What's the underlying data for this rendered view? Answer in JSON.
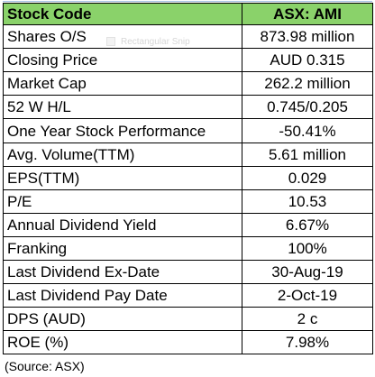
{
  "table": {
    "header": {
      "label": "Stock Code",
      "value": "ASX: AMI",
      "color": "#8ad26a"
    },
    "rows": [
      {
        "label": "Shares O/S",
        "value": "873.98 million"
      },
      {
        "label": "Closing Price",
        "value": "AUD 0.315"
      },
      {
        "label": "Market Cap",
        "value": "262.2 million"
      },
      {
        "label": "52 W H/L",
        "value": "0.745/0.205"
      },
      {
        "label": "One Year Stock Performance",
        "value": "-50.41%"
      },
      {
        "label": "Avg. Volume(TTM)",
        "value": "5.61 million"
      },
      {
        "label": "EPS(TTM)",
        "value": "0.029"
      },
      {
        "label": "P/E",
        "value": "10.53"
      },
      {
        "label": "Annual Dividend Yield",
        "value": "6.67%"
      },
      {
        "label": "Franking",
        "value": "100%"
      },
      {
        "label": "Last Dividend Ex-Date",
        "value": "30-Aug-19"
      },
      {
        "label": "Last Dividend Pay Date",
        "value": "2-Oct-19"
      },
      {
        "label": "DPS (AUD)",
        "value": "2 c"
      },
      {
        "label": "ROE (%)",
        "value": "7.98%"
      }
    ]
  },
  "watermark": {
    "text": "Rectangular Snip"
  },
  "source": "(Source: ASX)"
}
